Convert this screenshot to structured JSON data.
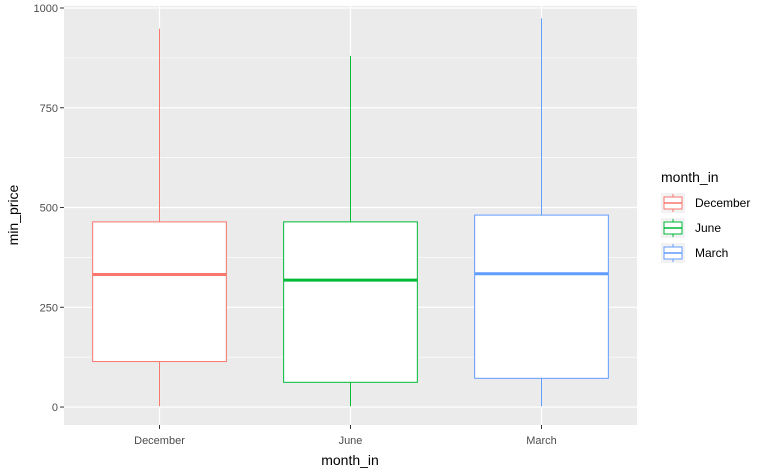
{
  "chart_data": {
    "type": "boxplot",
    "title": "",
    "xlabel": "month_in",
    "ylabel": "min_price",
    "ylim": [
      -45,
      1005
    ],
    "yticks": [
      0,
      250,
      500,
      750,
      1000
    ],
    "ytick_labels": [
      "0",
      "250",
      "500",
      "750",
      "1000"
    ],
    "categories": [
      "December",
      "June",
      "March"
    ],
    "grid": true,
    "legend": {
      "title": "month_in",
      "placement": "right",
      "entries": [
        "December",
        "June",
        "March"
      ]
    },
    "series": [
      {
        "name": "December",
        "color": "#F8766D",
        "min": 2,
        "q1": 114,
        "median": 332,
        "q3": 464,
        "max": 948
      },
      {
        "name": "June",
        "color": "#00BA38",
        "min": 2,
        "q1": 62,
        "median": 318,
        "q3": 464,
        "max": 880
      },
      {
        "name": "March",
        "color": "#619CFF",
        "min": 2,
        "q1": 72,
        "median": 334,
        "q3": 481,
        "max": 974
      }
    ]
  }
}
